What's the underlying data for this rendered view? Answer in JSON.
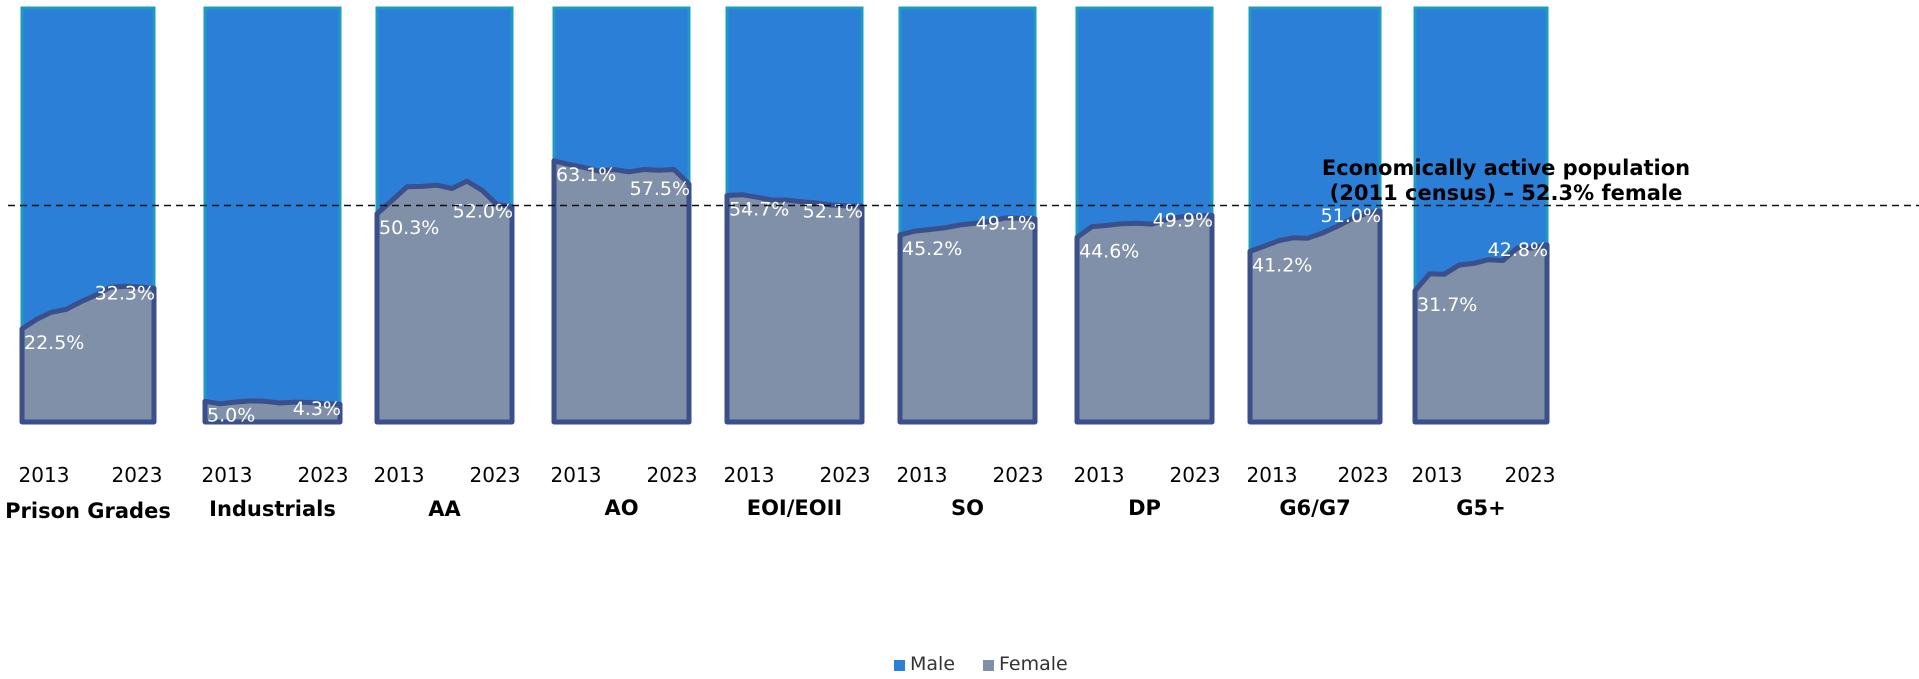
{
  "chart_data": {
    "type": "area",
    "stacked_percent": true,
    "x_start_label": "2013",
    "x_end_label": "2023",
    "ylim": [
      0,
      100
    ],
    "reference_line": {
      "value": 52.3,
      "label_line1": "Economically active population",
      "label_line2": "(2011 census) – 52.3% female"
    },
    "legend": [
      {
        "name": "Male",
        "color": "#2b7fd6"
      },
      {
        "name": "Female",
        "color": "#8090a8"
      }
    ],
    "colors": {
      "male": "#2b7fd6",
      "female": "#8090a8",
      "outline": "#3b4f8a",
      "frame": "#1e9bc4"
    },
    "groups": [
      {
        "name": "Prison Grades",
        "start_label": "22.5%",
        "end_label": "32.3%",
        "female_pct": [
          22.5,
          24.8,
          26.5,
          27.2,
          29.0,
          30.6,
          32.5,
          32.8,
          32.6,
          32.3
        ]
      },
      {
        "name": "Industrials",
        "start_label": "5.0%",
        "end_label": "4.3%",
        "female_pct": [
          5.0,
          4.4,
          4.8,
          5.1,
          5.0,
          4.6,
          4.8,
          4.7,
          4.4,
          4.3
        ]
      },
      {
        "name": "AA",
        "start_label": "50.3%",
        "end_label": "52.0%",
        "female_pct": [
          50.3,
          53.5,
          56.8,
          56.9,
          57.2,
          56.4,
          58.2,
          56.0,
          52.5,
          52.0
        ]
      },
      {
        "name": "AO",
        "start_label": "63.1%",
        "end_label": "57.5%",
        "female_pct": [
          63.1,
          62.2,
          61.5,
          60.6,
          61.0,
          60.4,
          61.0,
          60.8,
          61.0,
          57.5
        ]
      },
      {
        "name": "EOI/EOII",
        "start_label": "54.7%",
        "end_label": "52.1%",
        "female_pct": [
          54.7,
          54.9,
          54.3,
          53.6,
          53.6,
          53.2,
          52.9,
          52.4,
          52.2,
          52.1
        ]
      },
      {
        "name": "SO",
        "start_label": "45.2%",
        "end_label": "49.1%",
        "female_pct": [
          45.2,
          46.1,
          46.5,
          46.9,
          47.6,
          48.0,
          48.4,
          49.3,
          49.2,
          49.1
        ]
      },
      {
        "name": "DP",
        "start_label": "44.6%",
        "end_label": "49.9%",
        "female_pct": [
          44.6,
          47.2,
          47.5,
          47.9,
          48.0,
          47.8,
          48.9,
          49.6,
          49.7,
          49.9
        ]
      },
      {
        "name": "G6/G7",
        "start_label": "41.2%",
        "end_label": "51.0%",
        "female_pct": [
          41.2,
          42.5,
          43.8,
          44.5,
          44.4,
          45.6,
          47.2,
          49.0,
          50.3,
          51.0
        ]
      },
      {
        "name": "G5+",
        "start_label": "31.7%",
        "end_label": "42.8%",
        "female_pct": [
          31.7,
          35.8,
          35.7,
          37.9,
          38.3,
          39.2,
          39.0,
          42.1,
          42.0,
          42.8
        ]
      }
    ]
  }
}
